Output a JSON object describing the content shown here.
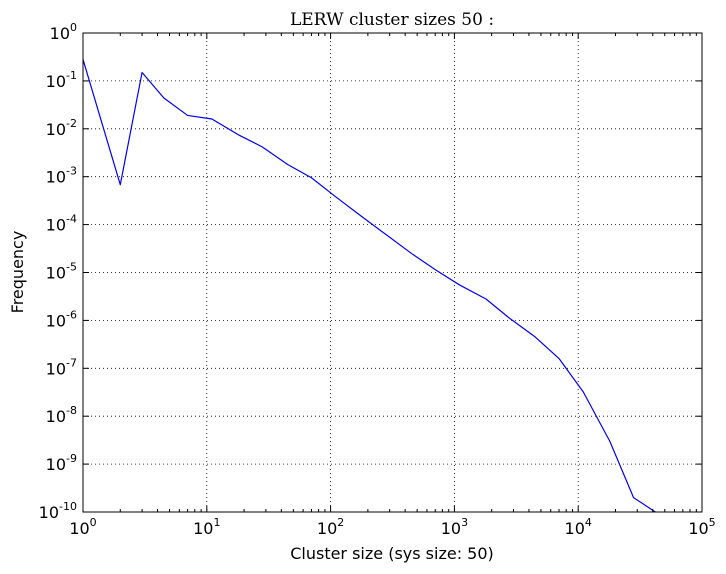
{
  "chart_data": {
    "type": "line",
    "title": "LERW cluster sizes 50 :",
    "xlabel": "Cluster size (sys size: 50)",
    "ylabel": "Frequency",
    "xscale": "log",
    "yscale": "log",
    "xlim": [
      1,
      100000
    ],
    "ylim": [
      1e-10,
      1
    ],
    "grid": true,
    "line_color": "#0000ff",
    "x_ticks": [
      {
        "base": "10",
        "exp": "0",
        "value": 1
      },
      {
        "base": "10",
        "exp": "1",
        "value": 10
      },
      {
        "base": "10",
        "exp": "2",
        "value": 100
      },
      {
        "base": "10",
        "exp": "3",
        "value": 1000
      },
      {
        "base": "10",
        "exp": "4",
        "value": 10000
      },
      {
        "base": "10",
        "exp": "5",
        "value": 100000
      }
    ],
    "y_ticks": [
      {
        "base": "10",
        "exp": "0",
        "value": 1
      },
      {
        "base": "10",
        "exp": "-1",
        "value": 0.1
      },
      {
        "base": "10",
        "exp": "-2",
        "value": 0.01
      },
      {
        "base": "10",
        "exp": "-3",
        "value": 0.001
      },
      {
        "base": "10",
        "exp": "-4",
        "value": 0.0001
      },
      {
        "base": "10",
        "exp": "-5",
        "value": 1e-05
      },
      {
        "base": "10",
        "exp": "-6",
        "value": 1e-06
      },
      {
        "base": "10",
        "exp": "-7",
        "value": 1e-07
      },
      {
        "base": "10",
        "exp": "-8",
        "value": 1e-08
      },
      {
        "base": "10",
        "exp": "-9",
        "value": 1e-09
      },
      {
        "base": "10",
        "exp": "-10",
        "value": 1e-10
      }
    ],
    "series": [
      {
        "x": [
          1,
          2,
          3,
          4.5,
          7,
          11,
          18,
          28,
          45,
          70,
          110,
          180,
          280,
          450,
          700,
          1100,
          1800,
          2800,
          4500,
          7000,
          11000,
          18000,
          28000,
          42000
        ],
        "y": [
          0.28,
          0.00068,
          0.15,
          0.044,
          0.019,
          0.016,
          0.0075,
          0.0042,
          0.0018,
          0.00095,
          0.00038,
          0.000145,
          6.2e-05,
          2.5e-05,
          1.15e-05,
          5.5e-06,
          2.8e-06,
          1.1e-06,
          4.5e-07,
          1.6e-07,
          3.2e-08,
          3e-09,
          2e-10,
          1e-10
        ]
      }
    ]
  }
}
